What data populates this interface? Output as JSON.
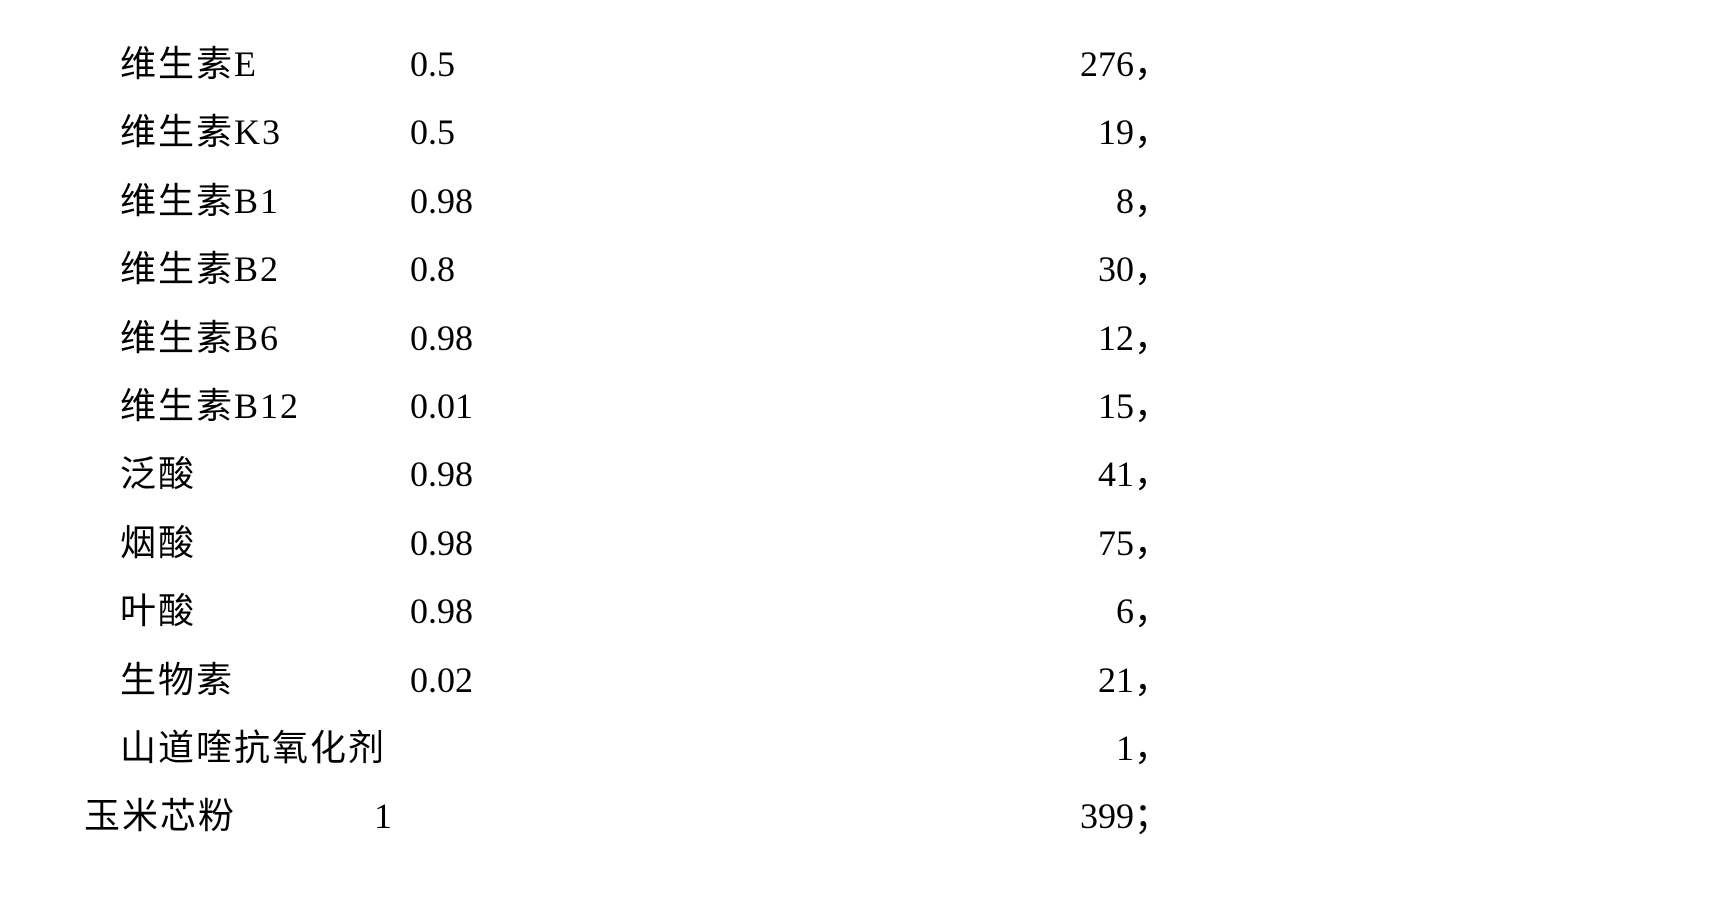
{
  "table": {
    "font_size_pt": 28,
    "font_family": "SimSun",
    "text_color": "#000000",
    "background_color": "#ffffff",
    "line_height": 1.9,
    "rows": [
      {
        "name": "维生素E",
        "val1": "0.5",
        "val2": "276，"
      },
      {
        "name": "维生素K3",
        "val1": "0.5",
        "val2": "19，"
      },
      {
        "name": "维生素B1",
        "val1": "0.98",
        "val2": "8，"
      },
      {
        "name": "维生素B2",
        "val1": "0.8",
        "val2": "30，"
      },
      {
        "name": "维生素B6",
        "val1": "0.98",
        "val2": "12，"
      },
      {
        "name": "维生素B12",
        "val1": "0.01",
        "val2": "15，"
      },
      {
        "name": "泛酸",
        "val1": "0.98",
        "val2": "41，"
      },
      {
        "name": "烟酸",
        "val1": "0.98",
        "val2": "75，"
      },
      {
        "name": "叶酸",
        "val1": "0.98",
        "val2": "6，"
      },
      {
        "name": "生物素",
        "val1": "0.02",
        "val2": "21，"
      },
      {
        "name": "山道喹抗氧化剂",
        "val1": "",
        "val2": "1，",
        "wide": true
      },
      {
        "name": "玉米芯粉",
        "val1": "1",
        "val2": "399；",
        "last": true
      }
    ]
  }
}
